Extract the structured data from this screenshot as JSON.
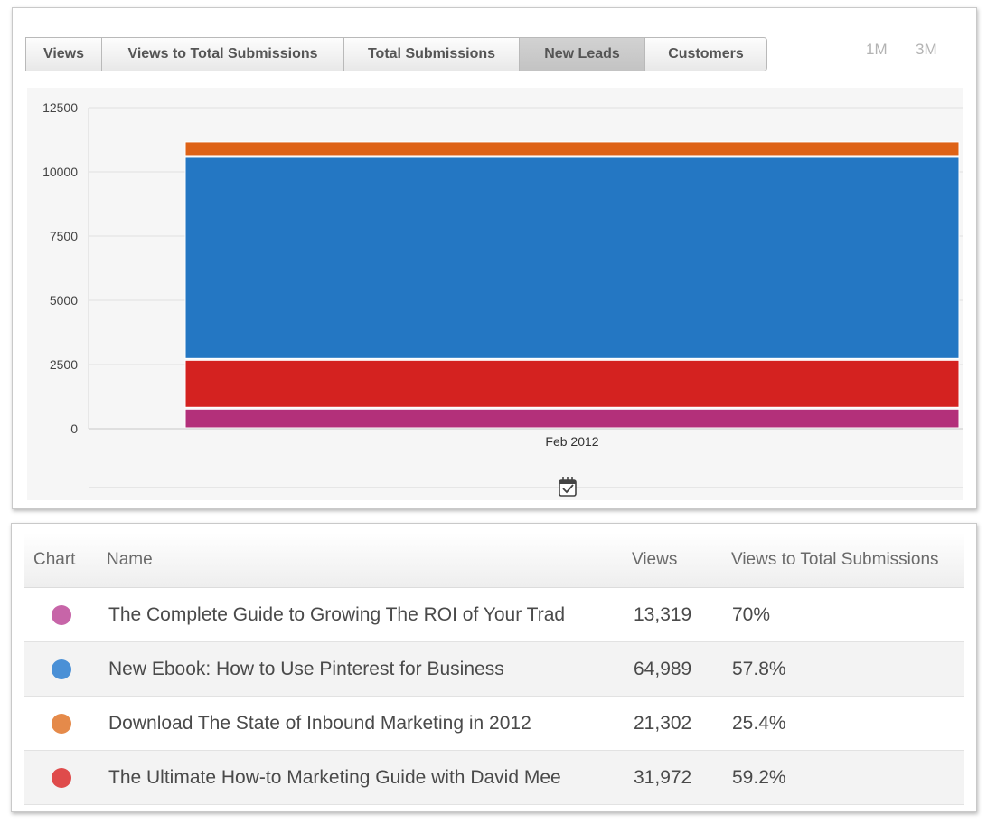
{
  "tabs": [
    {
      "label": "Views",
      "active": false
    },
    {
      "label": "Views to Total Submissions",
      "active": false
    },
    {
      "label": "Total Submissions",
      "active": false
    },
    {
      "label": "New Leads",
      "active": true
    },
    {
      "label": "Customers",
      "active": false
    }
  ],
  "ranges": [
    "1M",
    "3M"
  ],
  "chart_data": {
    "type": "bar",
    "stacked": true,
    "categories": [
      "Feb 2012"
    ],
    "series": [
      {
        "color": "#b3307a",
        "values": [
          800
        ]
      },
      {
        "color": "#d42220",
        "values": [
          1900
        ]
      },
      {
        "color": "#2477c3",
        "values": [
          7900
        ]
      },
      {
        "color": "#de6216",
        "values": [
          600
        ]
      }
    ],
    "ylim": [
      0,
      12500
    ],
    "yticks": [
      0,
      2500,
      5000,
      7500,
      10000,
      12500
    ],
    "grid": true
  },
  "calendar_icon": "calendar-check-icon",
  "table": {
    "headers": {
      "chart": "Chart",
      "name": "Name",
      "views": "Views",
      "ratio": "Views to Total Submissions"
    },
    "rows": [
      {
        "dot_color": "#c765a8",
        "name": "The Complete Guide to Growing The ROI of Your Trad",
        "views": "13,319",
        "ratio": "70%"
      },
      {
        "dot_color": "#4a90d6",
        "name": "New Ebook: How to Use Pinterest for Business",
        "views": "64,989",
        "ratio": "57.8%"
      },
      {
        "dot_color": "#e58a4a",
        "name": "Download The State of Inbound Marketing in 2012",
        "views": "21,302",
        "ratio": "25.4%"
      },
      {
        "dot_color": "#df4b4b",
        "name": "The Ultimate How-to Marketing Guide with David Mee",
        "views": "31,972",
        "ratio": "59.2%"
      }
    ]
  }
}
